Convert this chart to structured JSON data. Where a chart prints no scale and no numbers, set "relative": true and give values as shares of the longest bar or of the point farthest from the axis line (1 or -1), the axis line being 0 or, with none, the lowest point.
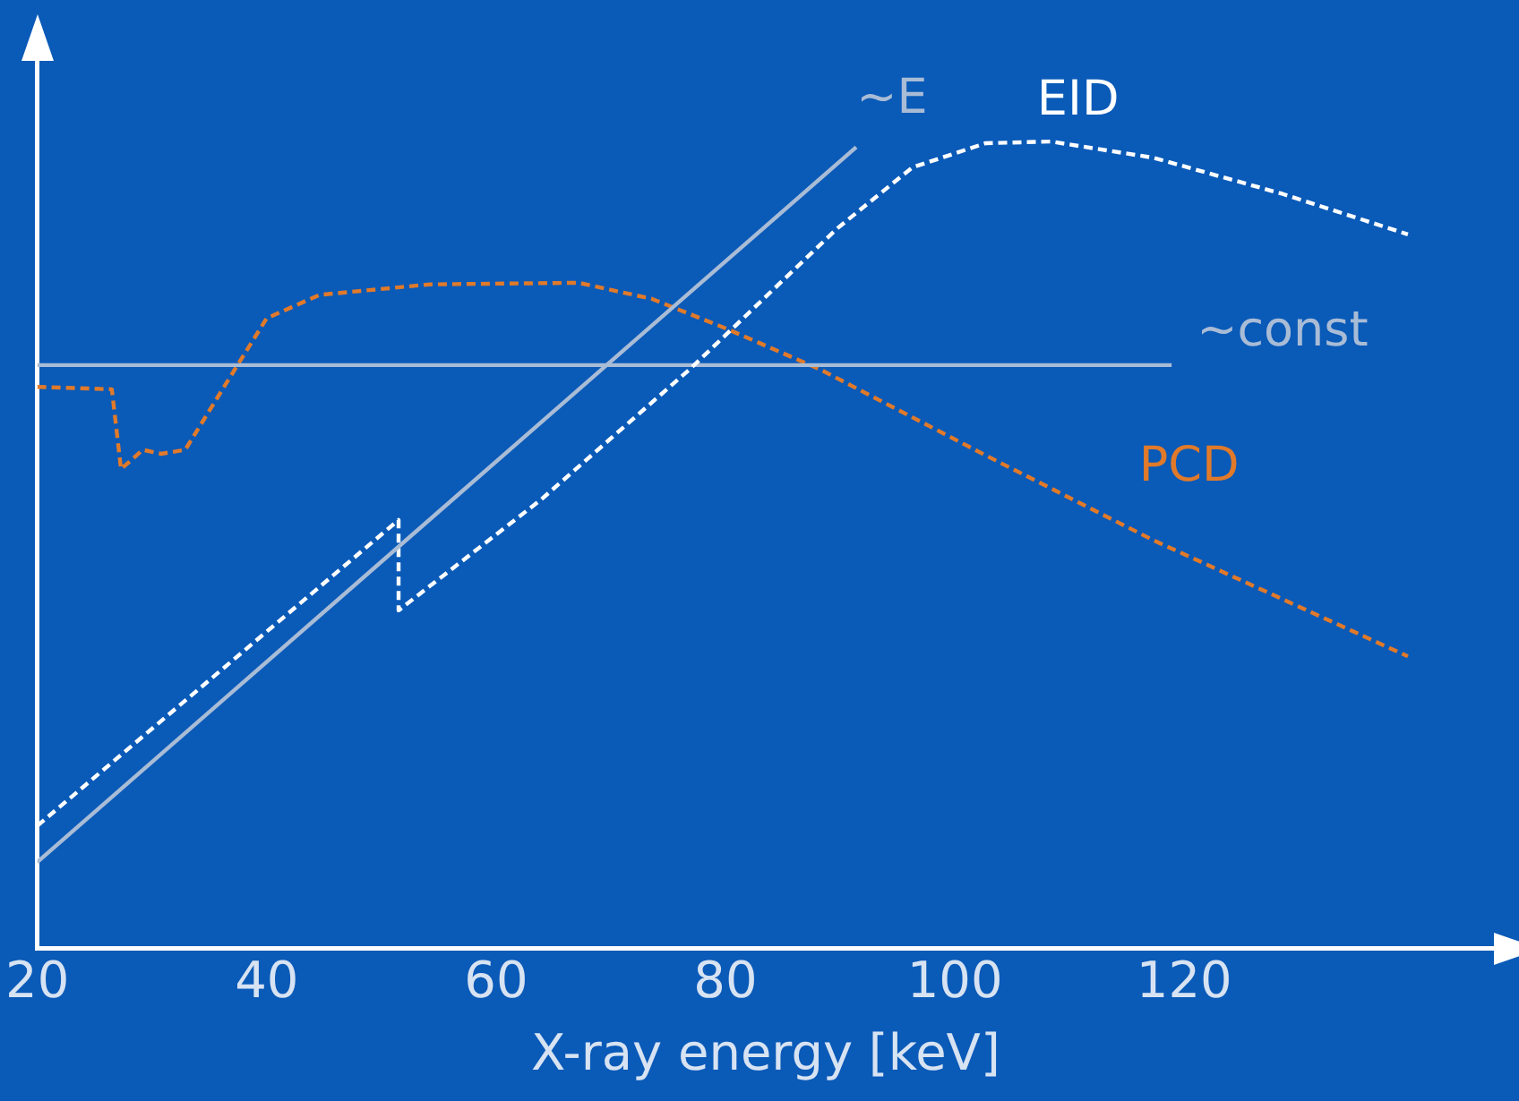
{
  "chart_data": {
    "type": "line",
    "relative": true,
    "xlabel": "X-ray energy [keV]",
    "xlim": [
      20,
      147
    ],
    "xticks": [
      20,
      40,
      60,
      80,
      100,
      120
    ],
    "grid": false,
    "legend": false,
    "marker": "none",
    "tick_labels": "x",
    "series": [
      {
        "name": "~E",
        "color": "#a9bcd6",
        "line_style": "solid",
        "x": [
          20,
          91.4
        ],
        "values": [
          0.107,
          0.993
        ]
      },
      {
        "name": "EID",
        "color": "#ffffff",
        "line_style": "dashed",
        "x": [
          20,
          51.5,
          51.5,
          63.9,
          76.9,
          89.8,
          96.3,
          102.7,
          108.4,
          117.3,
          128.6,
          139.5
        ],
        "values": [
          0.152,
          0.531,
          0.419,
          0.556,
          0.718,
          0.893,
          0.968,
          0.998,
          1.0,
          0.98,
          0.935,
          0.885
        ]
      },
      {
        "name": "~const",
        "color": "#a9bcd6",
        "line_style": "solid",
        "x": [
          20,
          118.9
        ],
        "values": [
          0.723,
          0.723
        ]
      },
      {
        "name": "PCD",
        "color": "#e07a2a",
        "line_style": "dashed",
        "x": [
          20,
          26.5,
          27.3,
          29.2,
          30.8,
          32.9,
          36.5,
          40.0,
          44.6,
          54.2,
          67.2,
          73.6,
          80.1,
          88.2,
          102.7,
          117.3,
          139.5
        ],
        "values": [
          0.696,
          0.693,
          0.594,
          0.618,
          0.613,
          0.618,
          0.701,
          0.781,
          0.81,
          0.823,
          0.825,
          0.805,
          0.768,
          0.718,
          0.611,
          0.506,
          0.362
        ]
      }
    ]
  }
}
